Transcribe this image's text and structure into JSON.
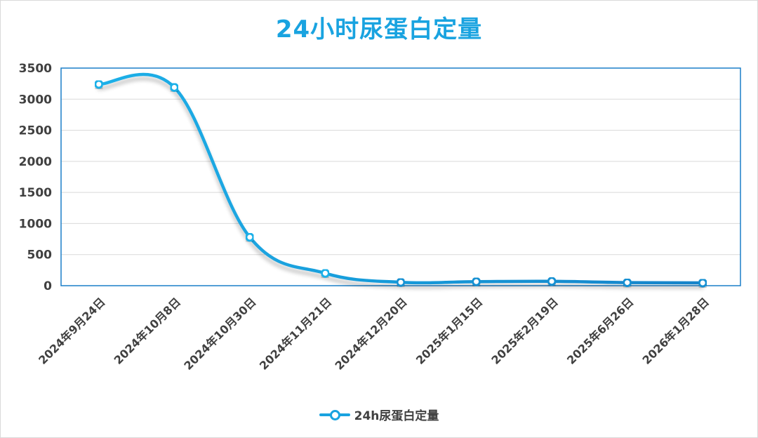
{
  "chart_data": {
    "type": "line",
    "title": "24小时尿蛋白定量",
    "xlabel": "",
    "ylabel": "",
    "categories": [
      "2024年9月24日",
      "2024年10月8日",
      "2024年10月30日",
      "2024年11月21日",
      "2024年12月20日",
      "2025年1月15日",
      "2025年2月19日",
      "2025年6月26日",
      "2026年1月28日"
    ],
    "series": [
      {
        "name": "24h尿蛋白定量",
        "values": [
          3240,
          3190,
          780,
          200,
          55,
          65,
          70,
          50,
          45
        ],
        "color": "#19a3e0"
      }
    ],
    "ylim": [
      0,
      3500
    ],
    "yticks": [
      0,
      500,
      1000,
      1500,
      2000,
      2500,
      3000,
      3500
    ],
    "grid": true,
    "legend": "bottom-center",
    "smooth": true
  }
}
